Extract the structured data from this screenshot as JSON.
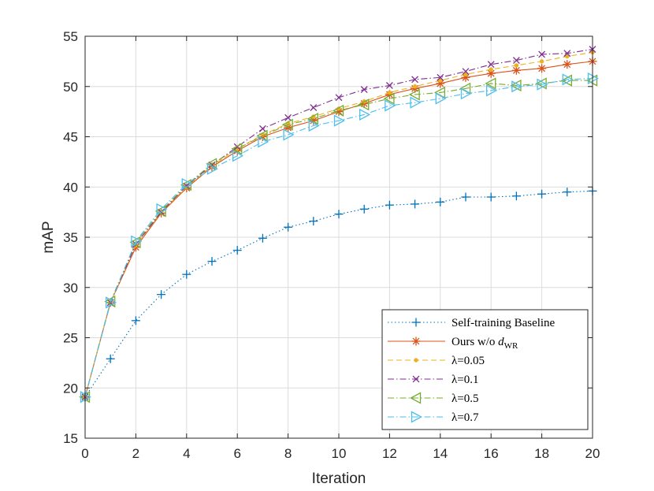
{
  "chart_data": {
    "type": "line",
    "title": "",
    "xlabel": "Iteration",
    "ylabel": "mAP",
    "xlim": [
      0,
      20
    ],
    "ylim": [
      15,
      55
    ],
    "xticks": [
      0,
      2,
      4,
      6,
      8,
      10,
      12,
      14,
      16,
      18,
      20
    ],
    "yticks": [
      15,
      20,
      25,
      30,
      35,
      40,
      45,
      50,
      55
    ],
    "grid": true,
    "legend_position": "bottom-right",
    "x": [
      0,
      1,
      2,
      3,
      4,
      5,
      6,
      7,
      8,
      9,
      10,
      11,
      12,
      13,
      14,
      15,
      16,
      17,
      18,
      19,
      20
    ],
    "series": [
      {
        "name": "Self-training Baseline",
        "color": "#0072BD",
        "marker": "plus",
        "dash": "dotted",
        "values": [
          19.1,
          22.9,
          26.7,
          29.3,
          31.3,
          32.6,
          33.7,
          34.9,
          36.0,
          36.6,
          37.3,
          37.8,
          38.2,
          38.3,
          38.5,
          39.0,
          39.0,
          39.1,
          39.3,
          39.5,
          39.6
        ]
      },
      {
        "name": "Ours w/o ",
        "name_sub": "WR",
        "name_math": "d",
        "color": "#D95319",
        "marker": "asterisk",
        "dash": "solid",
        "values": [
          19.1,
          28.5,
          34.0,
          37.4,
          39.9,
          42.0,
          43.6,
          45.0,
          45.9,
          46.6,
          47.5,
          48.3,
          49.2,
          49.8,
          50.3,
          50.9,
          51.3,
          51.6,
          51.8,
          52.2,
          52.5
        ]
      },
      {
        "name": "λ=0.05",
        "color": "#EDB120",
        "marker": "dot",
        "dash": "dashed",
        "values": [
          19.1,
          28.5,
          34.2,
          37.5,
          40.0,
          42.1,
          43.8,
          45.2,
          46.3,
          47.0,
          47.8,
          48.5,
          49.4,
          50.0,
          50.6,
          51.2,
          51.7,
          52.1,
          52.5,
          53.0,
          53.4
        ]
      },
      {
        "name": "λ=0.1",
        "color": "#7E2F8E",
        "marker": "x",
        "dash": "dashdot",
        "values": [
          19.1,
          28.5,
          34.3,
          37.5,
          40.1,
          42.2,
          44.0,
          45.8,
          46.9,
          47.9,
          48.9,
          49.7,
          50.1,
          50.7,
          50.9,
          51.5,
          52.2,
          52.6,
          53.2,
          53.3,
          53.7
        ]
      },
      {
        "name": "λ=0.5",
        "color": "#77AC30",
        "marker": "triangle-left",
        "dash": "dashdot",
        "values": [
          19.1,
          28.6,
          34.5,
          37.6,
          40.2,
          42.3,
          43.8,
          45.1,
          46.2,
          46.8,
          47.6,
          48.2,
          48.8,
          49.2,
          49.4,
          49.8,
          50.3,
          50.1,
          50.3,
          50.6,
          50.6
        ]
      },
      {
        "name": "λ=0.7",
        "color": "#4DBEEE",
        "marker": "triangle-right",
        "dash": "dashdot",
        "values": [
          19.1,
          28.5,
          34.6,
          37.8,
          40.3,
          41.8,
          43.1,
          44.5,
          45.2,
          46.1,
          46.6,
          47.2,
          48.1,
          48.4,
          48.8,
          49.3,
          49.6,
          50.0,
          50.2,
          50.7,
          50.8
        ]
      }
    ]
  }
}
